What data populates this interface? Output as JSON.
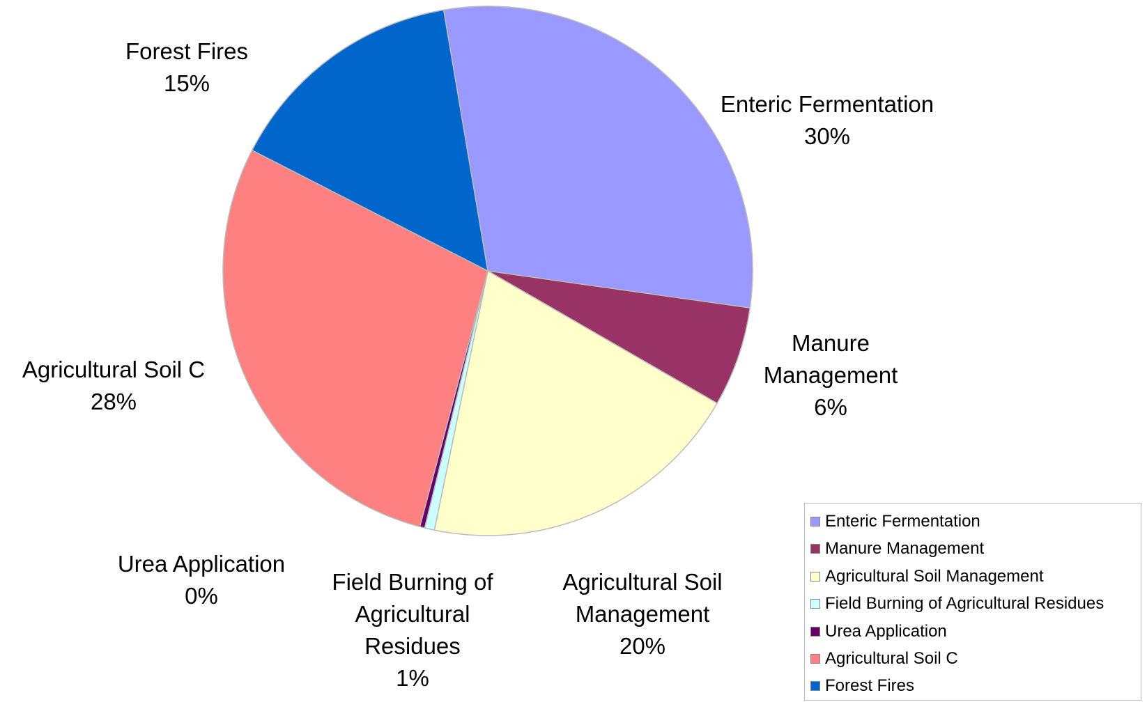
{
  "chart_data": {
    "type": "pie",
    "categories": [
      "Enteric Fermentation",
      "Manure Management",
      "Agricultural Soil Management",
      "Field Burning of Agricultural Residues",
      "Urea Application",
      "Agricultural Soil C",
      "Forest Fires"
    ],
    "values": [
      29.9,
      6.1,
      19.9,
      0.6,
      0.3,
      28.4,
      14.8
    ],
    "value_labels": [
      "30%",
      "6%",
      "20%",
      "1%",
      "0%",
      "28%",
      "15%"
    ],
    "colors": [
      "#9999ff",
      "#993366",
      "#ffffcc",
      "#ccffff",
      "#660066",
      "#ff8080",
      "#0066cc"
    ],
    "legend": "bottom-right"
  }
}
